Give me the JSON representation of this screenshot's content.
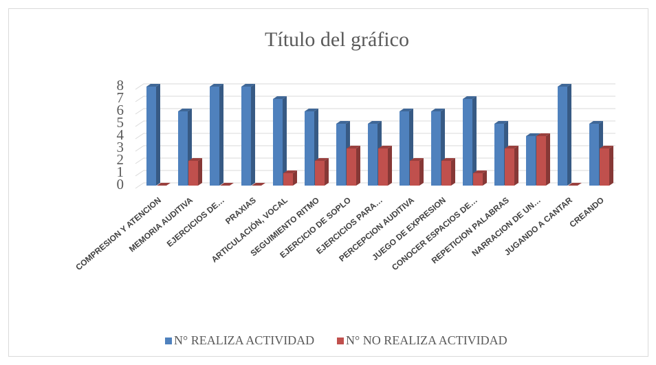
{
  "chart_data": {
    "type": "bar3d",
    "title": "Título del gráfico",
    "categories": [
      "COMPRESION Y  ATENCION",
      "MEMORIA AUDITIVA",
      "EJERCICIOS DE…",
      "PRAXIAS",
      "ARTICULACIÓN, VOCAL",
      "SEGUIMIENTO RITMO",
      "EJERCICIO DE SOPLO",
      "EJERCICIOS PARA…",
      "PERCEPCION AUDITIVA",
      "JUEGO DE EXPRESION",
      "CONOCER ESPACIOS DE…",
      "REPETICION PALABRAS",
      "NARRACION DE UN…",
      "JUGANDO A CANTAR",
      "CREANDO"
    ],
    "series": [
      {
        "name": "N° REALIZA ACTIVIDAD",
        "color": "#4f81bd",
        "values": [
          8,
          6,
          8,
          8,
          7,
          6,
          5,
          5,
          6,
          6,
          7,
          5,
          4,
          8,
          5
        ]
      },
      {
        "name": "N° NO REALIZA ACTIVIDAD",
        "color": "#c0504d",
        "values": [
          0,
          2,
          0,
          0,
          1,
          2,
          3,
          3,
          2,
          2,
          1,
          3,
          4,
          0,
          3
        ]
      }
    ],
    "ylim": [
      0,
      8
    ],
    "yticks": [
      0,
      1,
      2,
      3,
      4,
      5,
      6,
      7,
      8
    ],
    "grid": true,
    "legend": "bottom"
  }
}
